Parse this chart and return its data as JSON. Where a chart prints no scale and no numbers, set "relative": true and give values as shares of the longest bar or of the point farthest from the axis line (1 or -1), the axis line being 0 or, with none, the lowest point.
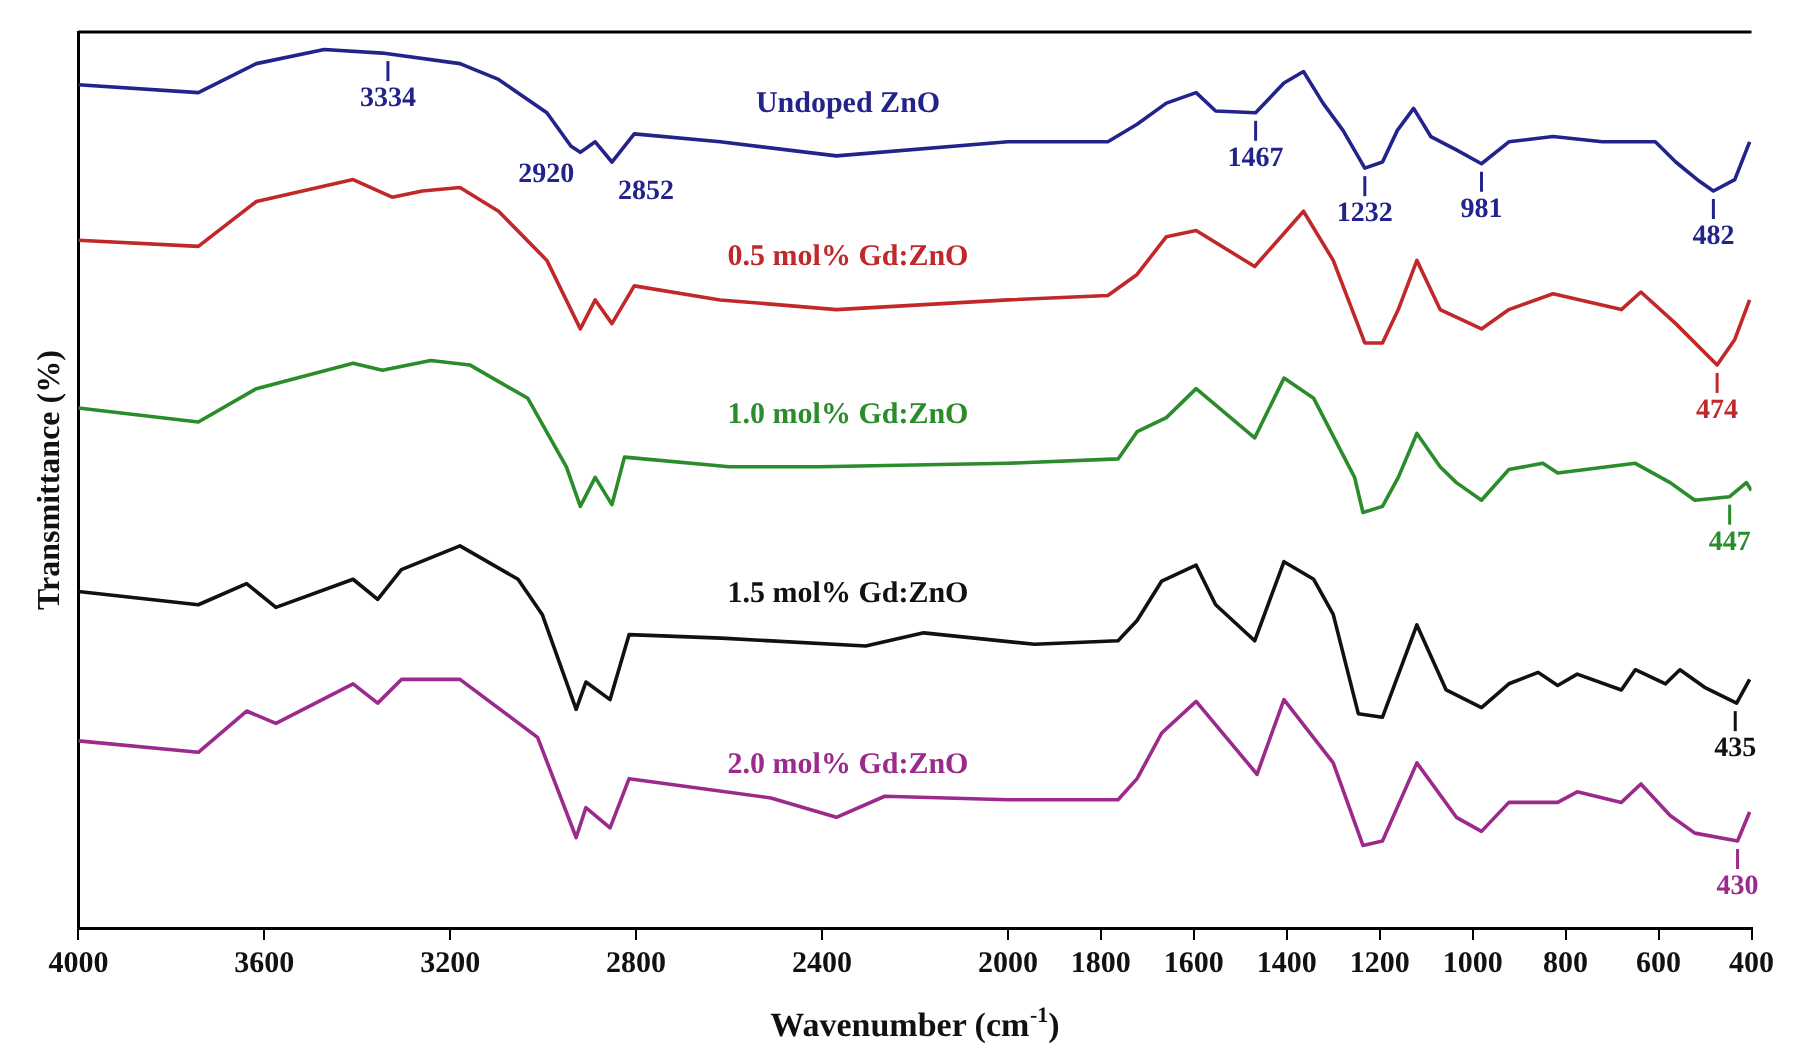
{
  "chart_data": {
    "type": "line",
    "relative": true,
    "xlabel": "Wavenumber (cm$^{-1}$)",
    "ylabel": "Transmittance (%)",
    "xlim": [
      4000,
      400
    ],
    "xticks": [
      4000,
      3600,
      3200,
      2800,
      2400,
      2000,
      1800,
      1600,
      1400,
      1200,
      1000,
      800,
      600,
      400
    ],
    "marker": "none",
    "line_style": "solid",
    "series": [
      {
        "name": "Undoped ZnO",
        "color": "#23238c",
        "x": [
          4000,
          3742,
          3617,
          3471,
          3346,
          3179,
          3096,
          2992,
          2940,
          2920,
          2888,
          2852,
          2804,
          2619,
          2369,
          2000,
          1785,
          1722,
          1659,
          1595,
          1553,
          1467,
          1406,
          1364,
          1322,
          1279,
          1232,
          1194,
          1162,
          1127,
          1090,
          1036,
          981,
          922,
          827,
          721,
          607,
          563,
          512,
          482,
          436,
          404
        ],
        "values": [
          0.96,
          0.951,
          0.984,
          1.0,
          0.996,
          0.984,
          0.966,
          0.928,
          0.89,
          0.883,
          0.895,
          0.872,
          0.904,
          0.895,
          0.879,
          0.895,
          0.895,
          0.915,
          0.939,
          0.951,
          0.93,
          0.928,
          0.962,
          0.975,
          0.939,
          0.908,
          0.865,
          0.872,
          0.908,
          0.933,
          0.901,
          0.886,
          0.87,
          0.895,
          0.901,
          0.895,
          0.895,
          0.872,
          0.85,
          0.839,
          0.852,
          0.895
        ]
      },
      {
        "name": "0.5 mol% Gd:ZnO",
        "color": "#c0282a",
        "x": [
          4000,
          3742,
          3617,
          3409,
          3325,
          3260,
          3179,
          3096,
          2992,
          2920,
          2888,
          2852,
          2804,
          2619,
          2369,
          2000,
          1785,
          1722,
          1659,
          1595,
          1469,
          1364,
          1300,
          1232,
          1194,
          1160,
          1120,
          1070,
          981,
          922,
          827,
          680,
          638,
          563,
          474,
          436,
          404
        ],
        "values": [
          0.783,
          0.776,
          0.827,
          0.852,
          0.832,
          0.839,
          0.843,
          0.816,
          0.76,
          0.682,
          0.715,
          0.688,
          0.731,
          0.715,
          0.704,
          0.715,
          0.72,
          0.744,
          0.787,
          0.794,
          0.753,
          0.816,
          0.76,
          0.666,
          0.666,
          0.704,
          0.76,
          0.704,
          0.682,
          0.704,
          0.722,
          0.704,
          0.724,
          0.688,
          0.641,
          0.67,
          0.715
        ]
      },
      {
        "name": "1.0 mol% Gd:ZnO",
        "color": "#2a8c2a",
        "x": [
          4000,
          3742,
          3617,
          3409,
          3346,
          3242,
          3158,
          3033,
          2950,
          2920,
          2888,
          2852,
          2825,
          2600,
          2406,
          2000,
          1763,
          1722,
          1659,
          1595,
          1469,
          1406,
          1342,
          1254,
          1236,
          1194,
          1160,
          1120,
          1070,
          1035,
          981,
          922,
          849,
          817,
          650,
          575,
          522,
          447,
          411,
          400
        ],
        "values": [
          0.592,
          0.576,
          0.614,
          0.643,
          0.635,
          0.646,
          0.641,
          0.603,
          0.525,
          0.48,
          0.513,
          0.482,
          0.536,
          0.525,
          0.525,
          0.529,
          0.534,
          0.565,
          0.581,
          0.614,
          0.558,
          0.626,
          0.603,
          0.513,
          0.473,
          0.48,
          0.513,
          0.563,
          0.525,
          0.507,
          0.487,
          0.522,
          0.529,
          0.518,
          0.529,
          0.507,
          0.487,
          0.491,
          0.507,
          0.498
        ]
      },
      {
        "name": "1.5 mol% Gd:ZnO",
        "color": "#111111",
        "x": [
          4000,
          3742,
          3638,
          3575,
          3409,
          3356,
          3305,
          3179,
          3054,
          3002,
          2929,
          2908,
          2856,
          2815,
          2617,
          2306,
          2181,
          1943,
          1763,
          1722,
          1669,
          1595,
          1553,
          1469,
          1406,
          1342,
          1300,
          1246,
          1194,
          1120,
          1057,
          981,
          922,
          859,
          817,
          775,
          680,
          650,
          585,
          554,
          501,
          432,
          404
        ],
        "values": [
          0.383,
          0.368,
          0.392,
          0.365,
          0.397,
          0.374,
          0.408,
          0.435,
          0.397,
          0.357,
          0.249,
          0.28,
          0.26,
          0.334,
          0.33,
          0.321,
          0.336,
          0.323,
          0.327,
          0.35,
          0.395,
          0.413,
          0.368,
          0.327,
          0.417,
          0.397,
          0.357,
          0.244,
          0.24,
          0.345,
          0.271,
          0.251,
          0.278,
          0.291,
          0.276,
          0.289,
          0.271,
          0.294,
          0.278,
          0.294,
          0.274,
          0.256,
          0.283
        ]
      },
      {
        "name": "2.0 mol% Gd:ZnO",
        "color": "#9b2a8c",
        "x": [
          4000,
          3742,
          3638,
          3575,
          3409,
          3356,
          3305,
          3179,
          3012,
          2929,
          2908,
          2856,
          2815,
          2510,
          2369,
          2265,
          2000,
          1763,
          1722,
          1669,
          1595,
          1464,
          1406,
          1300,
          1236,
          1194,
          1120,
          1035,
          981,
          922,
          817,
          775,
          680,
          638,
          575,
          522,
          430,
          404
        ],
        "values": [
          0.213,
          0.2,
          0.247,
          0.233,
          0.278,
          0.256,
          0.283,
          0.283,
          0.217,
          0.103,
          0.137,
          0.114,
          0.17,
          0.148,
          0.126,
          0.15,
          0.146,
          0.146,
          0.17,
          0.222,
          0.258,
          0.175,
          0.26,
          0.188,
          0.094,
          0.099,
          0.188,
          0.126,
          0.11,
          0.143,
          0.143,
          0.155,
          0.143,
          0.164,
          0.128,
          0.108,
          0.099,
          0.132
        ]
      }
    ],
    "annotations": [
      {
        "text": "3334",
        "x": 3334,
        "y": 0.996
      },
      {
        "text": "2920",
        "x": 2920,
        "y": 0.883
      },
      {
        "text": "2852",
        "x": 2852,
        "y": 0.872
      },
      {
        "text": "1467",
        "x": 1467,
        "y": 0.928
      },
      {
        "text": "1232",
        "x": 1232,
        "y": 0.865
      },
      {
        "text": "981",
        "x": 981,
        "y": 0.87
      },
      {
        "text": "482",
        "x": 482,
        "y": 0.839
      },
      {
        "text": "474",
        "x": 474,
        "y": 0.641
      },
      {
        "text": "447",
        "x": 447,
        "y": 0.491
      },
      {
        "text": "435",
        "x": 435,
        "y": 0.256
      },
      {
        "text": "430",
        "x": 430,
        "y": 0.099
      }
    ]
  }
}
